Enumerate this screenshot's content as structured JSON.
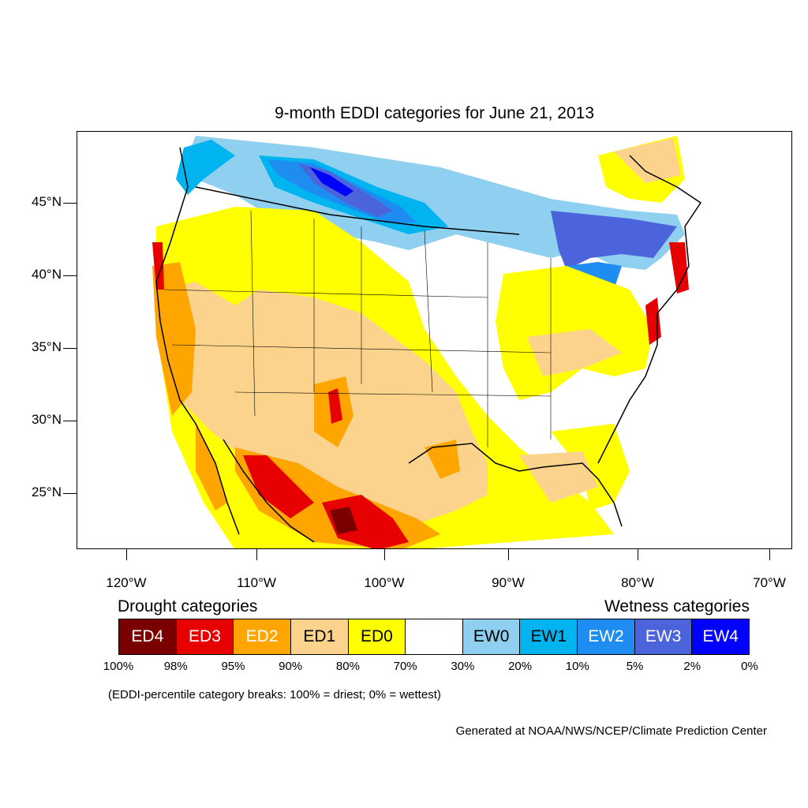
{
  "title": "9-month EDDI categories for June 21, 2013",
  "y_axis_labels": [
    "45°N",
    "40°N",
    "35°N",
    "30°N",
    "25°N"
  ],
  "x_axis_labels": [
    "120°W",
    "110°W",
    "100°W",
    "90°W",
    "80°W",
    "70°W"
  ],
  "legend": {
    "drought_title": "Drought categories",
    "wetness_title": "Wetness categories",
    "categories": [
      {
        "label": "ED4",
        "color": "#7a0000",
        "text_color": "#ffffff"
      },
      {
        "label": "ED3",
        "color": "#e60000",
        "text_color": "#ffffff"
      },
      {
        "label": "ED2",
        "color": "#ffa500",
        "text_color": "#ffffff"
      },
      {
        "label": "ED1",
        "color": "#fcd38c",
        "text_color": "#000000"
      },
      {
        "label": "ED0",
        "color": "#ffff00",
        "text_color": "#000000"
      },
      {
        "label": "",
        "color": "#ffffff",
        "text_color": "#000000"
      },
      {
        "label": "EW0",
        "color": "#8fcff0",
        "text_color": "#000000"
      },
      {
        "label": "EW1",
        "color": "#00b4f0",
        "text_color": "#000000"
      },
      {
        "label": "EW2",
        "color": "#1e8cf0",
        "text_color": "#ffffff"
      },
      {
        "label": "EW3",
        "color": "#4b64dc",
        "text_color": "#ffffff"
      },
      {
        "label": "EW4",
        "color": "#0000ff",
        "text_color": "#ffffff"
      }
    ],
    "breaks": [
      "100%",
      "98%",
      "95%",
      "90%",
      "80%",
      "70%",
      "30%",
      "20%",
      "10%",
      "5%",
      "2%",
      "0%"
    ]
  },
  "note": "(EDDI-percentile category breaks: 100% = driest; 0% = wettest)",
  "credit": "Generated at NOAA/NWS/NCEP/Climate Prediction Center"
}
